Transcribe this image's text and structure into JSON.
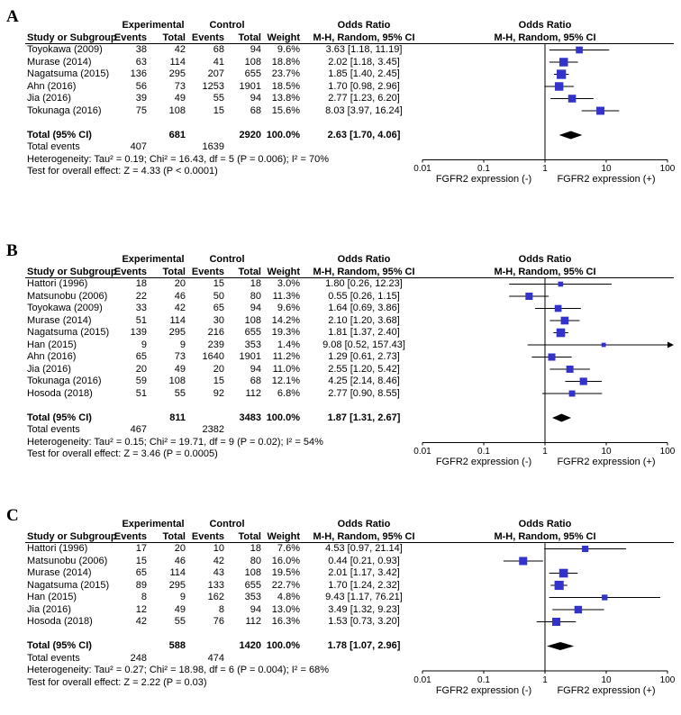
{
  "figure": {
    "background": "#ffffff",
    "square_color": "#3333cc",
    "diamond_color": "#000000",
    "line_color": "#000000",
    "axis_ticks": [
      "0.01",
      "0.1",
      "1",
      "10",
      "100"
    ],
    "axis_tick_values": [
      0.01,
      0.1,
      1,
      10,
      100
    ],
    "axis_label_left": "FGFR2 expression (-)",
    "axis_label_right": "FGFR2 expression (+)",
    "headers": {
      "group_experimental": "Experimental",
      "group_control": "Control",
      "odds_ratio_text": "Odds Ratio",
      "odds_ratio_plot": "Odds Ratio",
      "study": "Study or Subgroup",
      "events": "Events",
      "total": "Total",
      "weight": "Weight",
      "method": "M-H, Random, 95% CI"
    }
  },
  "chart_data": [
    {
      "label": "A",
      "type": "forest",
      "x_scale": "log",
      "x_range": [
        0.01,
        100
      ],
      "studies": [
        {
          "study": "Toyokawa (2009)",
          "events_exp": "38",
          "total_exp": "42",
          "events_ctl": "68",
          "total_ctl": "94",
          "weight": "9.6%",
          "or": 3.63,
          "ci_low": 1.18,
          "ci_high": 11.19,
          "or_text": "3.63 [1.18, 11.19]"
        },
        {
          "study": "Murase (2014)",
          "events_exp": "63",
          "total_exp": "114",
          "events_ctl": "41",
          "total_ctl": "108",
          "weight": "18.8%",
          "or": 2.02,
          "ci_low": 1.18,
          "ci_high": 3.45,
          "or_text": "2.02 [1.18, 3.45]"
        },
        {
          "study": "Nagatsuma (2015)",
          "events_exp": "136",
          "total_exp": "295",
          "events_ctl": "207",
          "total_ctl": "655",
          "weight": "23.7%",
          "or": 1.85,
          "ci_low": 1.4,
          "ci_high": 2.45,
          "or_text": "1.85 [1.40, 2.45]"
        },
        {
          "study": "Ahn (2016)",
          "events_exp": "56",
          "total_exp": "73",
          "events_ctl": "1253",
          "total_ctl": "1901",
          "weight": "18.5%",
          "or": 1.7,
          "ci_low": 0.98,
          "ci_high": 2.96,
          "or_text": "1.70 [0.98, 2.96]"
        },
        {
          "study": "Jia (2016)",
          "events_exp": "39",
          "total_exp": "49",
          "events_ctl": "55",
          "total_ctl": "94",
          "weight": "13.8%",
          "or": 2.77,
          "ci_low": 1.23,
          "ci_high": 6.2,
          "or_text": "2.77 [1.23, 6.20]"
        },
        {
          "study": "Tokunaga (2016)",
          "events_exp": "75",
          "total_exp": "108",
          "events_ctl": "15",
          "total_ctl": "68",
          "weight": "15.6%",
          "or": 8.03,
          "ci_low": 3.97,
          "ci_high": 16.24,
          "or_text": "8.03 [3.97, 16.24]"
        }
      ],
      "total_row": {
        "label": "Total (95% CI)",
        "total_exp": "681",
        "total_ctl": "2920",
        "weight": "100.0%",
        "or": 2.63,
        "ci_low": 1.7,
        "ci_high": 4.06,
        "or_text": "2.63 [1.70, 4.06]"
      },
      "total_events": {
        "label": "Total events",
        "events_exp": "407",
        "events_ctl": "1639"
      },
      "heterogeneity": "Heterogeneity: Tau² = 0.19; Chi² = 16.43, df = 5 (P = 0.006); I² = 70%",
      "overall_effect": "Test for overall effect: Z = 4.33 (P < 0.0001)"
    },
    {
      "label": "B",
      "type": "forest",
      "x_scale": "log",
      "x_range": [
        0.01,
        100
      ],
      "studies": [
        {
          "study": "Hattori (1996)",
          "events_exp": "18",
          "total_exp": "20",
          "events_ctl": "15",
          "total_ctl": "18",
          "weight": "3.0%",
          "or": 1.8,
          "ci_low": 0.26,
          "ci_high": 12.23,
          "or_text": "1.80 [0.26, 12.23]"
        },
        {
          "study": "Matsunobu (2006)",
          "events_exp": "22",
          "total_exp": "46",
          "events_ctl": "50",
          "total_ctl": "80",
          "weight": "11.3%",
          "or": 0.55,
          "ci_low": 0.26,
          "ci_high": 1.15,
          "or_text": "0.55 [0.26, 1.15]"
        },
        {
          "study": "Toyokawa (2009)",
          "events_exp": "33",
          "total_exp": "42",
          "events_ctl": "65",
          "total_ctl": "94",
          "weight": "9.6%",
          "or": 1.64,
          "ci_low": 0.69,
          "ci_high": 3.86,
          "or_text": "1.64 [0.69, 3.86]"
        },
        {
          "study": "Murase (2014)",
          "events_exp": "51",
          "total_exp": "114",
          "events_ctl": "30",
          "total_ctl": "108",
          "weight": "14.2%",
          "or": 2.1,
          "ci_low": 1.2,
          "ci_high": 3.68,
          "or_text": "2.10 [1.20, 3.68]"
        },
        {
          "study": "Nagatsuma (2015)",
          "events_exp": "139",
          "total_exp": "295",
          "events_ctl": "216",
          "total_ctl": "655",
          "weight": "19.3%",
          "or": 1.81,
          "ci_low": 1.37,
          "ci_high": 2.4,
          "or_text": "1.81 [1.37, 2.40]"
        },
        {
          "study": "Han (2015)",
          "events_exp": "9",
          "total_exp": "9",
          "events_ctl": "239",
          "total_ctl": "353",
          "weight": "1.4%",
          "or": 9.08,
          "ci_low": 0.52,
          "ci_high": 157.43,
          "or_text": "9.08 [0.52, 157.43]"
        },
        {
          "study": "Ahn (2016)",
          "events_exp": "65",
          "total_exp": "73",
          "events_ctl": "1640",
          "total_ctl": "1901",
          "weight": "11.2%",
          "or": 1.29,
          "ci_low": 0.61,
          "ci_high": 2.73,
          "or_text": "1.29 [0.61, 2.73]"
        },
        {
          "study": "Jia (2016)",
          "events_exp": "20",
          "total_exp": "49",
          "events_ctl": "20",
          "total_ctl": "94",
          "weight": "11.0%",
          "or": 2.55,
          "ci_low": 1.2,
          "ci_high": 5.42,
          "or_text": "2.55 [1.20, 5.42]"
        },
        {
          "study": "Tokunaga (2016)",
          "events_exp": "59",
          "total_exp": "108",
          "events_ctl": "15",
          "total_ctl": "68",
          "weight": "12.1%",
          "or": 4.25,
          "ci_low": 2.14,
          "ci_high": 8.46,
          "or_text": "4.25 [2.14, 8.46]"
        },
        {
          "study": "Hosoda (2018)",
          "events_exp": "51",
          "total_exp": "55",
          "events_ctl": "92",
          "total_ctl": "112",
          "weight": "6.8%",
          "or": 2.77,
          "ci_low": 0.9,
          "ci_high": 8.55,
          "or_text": "2.77 [0.90, 8.55]"
        }
      ],
      "total_row": {
        "label": "Total (95% CI)",
        "total_exp": "811",
        "total_ctl": "3483",
        "weight": "100.0%",
        "or": 1.87,
        "ci_low": 1.31,
        "ci_high": 2.67,
        "or_text": "1.87 [1.31, 2.67]"
      },
      "total_events": {
        "label": "Total events",
        "events_exp": "467",
        "events_ctl": "2382"
      },
      "heterogeneity": "Heterogeneity: Tau² = 0.15; Chi² = 19.71, df = 9 (P = 0.02); I² = 54%",
      "overall_effect": "Test for overall effect: Z = 3.46 (P = 0.0005)"
    },
    {
      "label": "C",
      "type": "forest",
      "x_scale": "log",
      "x_range": [
        0.01,
        100
      ],
      "studies": [
        {
          "study": "Hattori (1996)",
          "events_exp": "17",
          "total_exp": "20",
          "events_ctl": "10",
          "total_ctl": "18",
          "weight": "7.6%",
          "or": 4.53,
          "ci_low": 0.97,
          "ci_high": 21.14,
          "or_text": "4.53 [0.97, 21.14]"
        },
        {
          "study": "Matsunobu (2006)",
          "events_exp": "15",
          "total_exp": "46",
          "events_ctl": "42",
          "total_ctl": "80",
          "weight": "16.0%",
          "or": 0.44,
          "ci_low": 0.21,
          "ci_high": 0.93,
          "or_text": "0.44 [0.21, 0.93]"
        },
        {
          "study": "Murase (2014)",
          "events_exp": "65",
          "total_exp": "114",
          "events_ctl": "43",
          "total_ctl": "108",
          "weight": "19.5%",
          "or": 2.01,
          "ci_low": 1.17,
          "ci_high": 3.42,
          "or_text": "2.01 [1.17, 3.42]"
        },
        {
          "study": "Nagatsuma (2015)",
          "events_exp": "89",
          "total_exp": "295",
          "events_ctl": "133",
          "total_ctl": "655",
          "weight": "22.7%",
          "or": 1.7,
          "ci_low": 1.24,
          "ci_high": 2.32,
          "or_text": "1.70 [1.24, 2.32]"
        },
        {
          "study": "Han (2015)",
          "events_exp": "8",
          "total_exp": "9",
          "events_ctl": "162",
          "total_ctl": "353",
          "weight": "4.8%",
          "or": 9.43,
          "ci_low": 1.17,
          "ci_high": 76.21,
          "or_text": "9.43 [1.17, 76.21]"
        },
        {
          "study": "Jia (2016)",
          "events_exp": "12",
          "total_exp": "49",
          "events_ctl": "8",
          "total_ctl": "94",
          "weight": "13.0%",
          "or": 3.49,
          "ci_low": 1.32,
          "ci_high": 9.23,
          "or_text": "3.49 [1.32, 9.23]"
        },
        {
          "study": "Hosoda (2018)",
          "events_exp": "42",
          "total_exp": "55",
          "events_ctl": "76",
          "total_ctl": "112",
          "weight": "16.3%",
          "or": 1.53,
          "ci_low": 0.73,
          "ci_high": 3.2,
          "or_text": "1.53 [0.73, 3.20]"
        }
      ],
      "total_row": {
        "label": "Total (95% CI)",
        "total_exp": "588",
        "total_ctl": "1420",
        "weight": "100.0%",
        "or": 1.78,
        "ci_low": 1.07,
        "ci_high": 2.96,
        "or_text": "1.78 [1.07, 2.96]"
      },
      "total_events": {
        "label": "Total events",
        "events_exp": "248",
        "events_ctl": "474"
      },
      "heterogeneity": "Heterogeneity: Tau² = 0.27; Chi² = 18.98, df = 6 (P = 0.004); I² = 68%",
      "overall_effect": "Test for overall effect: Z = 2.22 (P = 0.03)"
    }
  ]
}
